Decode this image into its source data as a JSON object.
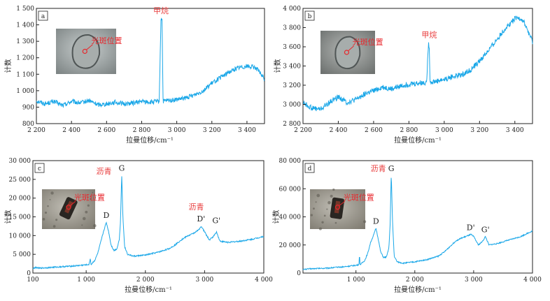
{
  "chart_data": [
    {
      "type": "line",
      "panel_label": "a",
      "xlabel": "拉曼位移/cm⁻¹",
      "ylabel": "计数",
      "xlim": [
        2200,
        3500
      ],
      "ylim": [
        800,
        1500
      ],
      "xticks": [
        2200,
        2400,
        2600,
        2800,
        3000,
        3200,
        3400
      ],
      "xtick_labels": [
        "2 200",
        "2 400",
        "2 600",
        "2 800",
        "3 000",
        "3 200",
        "3 400"
      ],
      "yticks": [
        800,
        900,
        1000,
        1100,
        1200,
        1300,
        1400,
        1500
      ],
      "ytick_labels": [
        "800",
        "900",
        "1 000",
        "1 100",
        "1 200",
        "1 300",
        "1 400",
        "1 500"
      ],
      "series": [
        {
          "color": "#1aa7e8",
          "noise": 14,
          "x": [
            2200,
            2250,
            2300,
            2350,
            2400,
            2450,
            2500,
            2550,
            2600,
            2650,
            2700,
            2750,
            2800,
            2850,
            2900,
            2910,
            2916,
            2922,
            2950,
            3000,
            3050,
            3100,
            3150,
            3200,
            3250,
            3300,
            3350,
            3400,
            3450,
            3480,
            3500
          ],
          "y": [
            940,
            920,
            935,
            910,
            935,
            925,
            940,
            915,
            920,
            930,
            920,
            925,
            935,
            930,
            935,
            1440,
            1440,
            935,
            940,
            945,
            955,
            975,
            1000,
            1045,
            1080,
            1115,
            1140,
            1150,
            1140,
            1100,
            1070
          ]
        }
      ],
      "annotations": [
        {
          "text": "甲烷",
          "x": 2910,
          "y": 1470
        }
      ],
      "inset": {
        "label": "光斑位置"
      }
    },
    {
      "type": "line",
      "panel_label": "b",
      "xlabel": "拉曼位移/cm⁻¹",
      "ylabel": "计数",
      "xlim": [
        2200,
        3500
      ],
      "ylim": [
        2800,
        4000
      ],
      "xticks": [
        2200,
        2400,
        2600,
        2800,
        3000,
        3200,
        3400
      ],
      "xtick_labels": [
        "2 200",
        "2 400",
        "2 600",
        "2 800",
        "3 000",
        "3 200",
        "3 400"
      ],
      "yticks": [
        2800,
        3000,
        3200,
        3400,
        3600,
        3800,
        4000
      ],
      "ytick_labels": [
        "2 800",
        "3 000",
        "3 200",
        "3 400",
        "3 600",
        "3 800",
        "4 000"
      ],
      "series": [
        {
          "color": "#1aa7e8",
          "noise": 28,
          "x": [
            2200,
            2250,
            2300,
            2350,
            2400,
            2450,
            2500,
            2550,
            2600,
            2650,
            2700,
            2750,
            2800,
            2850,
            2900,
            2910,
            2915,
            2920,
            2950,
            3000,
            3050,
            3100,
            3150,
            3200,
            3250,
            3300,
            3350,
            3400,
            3430,
            3450,
            3480,
            3500
          ],
          "y": [
            3020,
            2960,
            2950,
            3020,
            3080,
            3020,
            3050,
            3110,
            3140,
            3180,
            3160,
            3190,
            3210,
            3220,
            3230,
            3620,
            3620,
            3230,
            3240,
            3260,
            3290,
            3310,
            3360,
            3450,
            3560,
            3680,
            3800,
            3890,
            3900,
            3860,
            3740,
            3650
          ]
        }
      ],
      "annotations": [
        {
          "text": "甲烷",
          "x": 2915,
          "y": 3700
        }
      ],
      "inset": {
        "label": "光斑位置"
      }
    },
    {
      "type": "line",
      "panel_label": "c",
      "xlabel": "拉曼位移/cm⁻¹",
      "ylabel": "计数",
      "xlim": [
        100,
        4000
      ],
      "ylim": [
        0,
        30000
      ],
      "xticks": [
        100,
        1000,
        2000,
        3000,
        4000
      ],
      "xtick_labels": [
        "100",
        "1 000",
        "2 000",
        "3 000",
        "4 000"
      ],
      "yticks": [
        0,
        5000,
        10000,
        15000,
        20000,
        25000,
        30000
      ],
      "ytick_labels": [
        "0",
        "5 000",
        "10 000",
        "15 000",
        "20 000",
        "25 000",
        "30 000"
      ],
      "series": [
        {
          "color": "#1aa7e8",
          "noise": 180,
          "x": [
            100,
            150,
            200,
            300,
            500,
            800,
            1000,
            1050,
            1070,
            1080,
            1090,
            1150,
            1200,
            1250,
            1300,
            1340,
            1380,
            1420,
            1470,
            1520,
            1560,
            1580,
            1600,
            1620,
            1650,
            1700,
            1800,
            2000,
            2200,
            2400,
            2500,
            2600,
            2700,
            2800,
            2900,
            2940,
            3000,
            3080,
            3150,
            3200,
            3260,
            3400,
            3600,
            3800,
            4000
          ],
          "y": [
            1200,
            1500,
            1300,
            1400,
            1600,
            1900,
            2200,
            2300,
            4000,
            2300,
            2400,
            3500,
            5500,
            8500,
            11500,
            13500,
            11000,
            7500,
            6000,
            6500,
            9000,
            14000,
            26500,
            15000,
            7000,
            5000,
            4500,
            4800,
            5500,
            6500,
            7500,
            8800,
            9800,
            10500,
            11500,
            12500,
            11000,
            8800,
            9800,
            11000,
            8500,
            8200,
            8500,
            9000,
            9800
          ]
        }
      ],
      "annotations": [
        {
          "text": "沥青",
          "x": 1300,
          "y": 26500,
          "color": "#e83a3a"
        },
        {
          "text": "G",
          "x": 1600,
          "y": 27300,
          "color": "#222222"
        },
        {
          "text": "D",
          "x": 1340,
          "y": 14700,
          "color": "#222222"
        },
        {
          "text": "沥青",
          "x": 2860,
          "y": 17000,
          "color": "#e83a3a"
        },
        {
          "text": "D'",
          "x": 2940,
          "y": 13800,
          "color": "#222222"
        },
        {
          "text": "G'",
          "x": 3200,
          "y": 13300,
          "color": "#222222"
        }
      ],
      "inset": {
        "label": "光斑位置"
      }
    },
    {
      "type": "line",
      "panel_label": "d",
      "xlabel": "拉曼位移/cm⁻¹",
      "ylabel": "计数",
      "xlim": [
        100,
        4000
      ],
      "ylim": [
        0,
        80000
      ],
      "xticks": [
        1000,
        2000,
        3000,
        4000
      ],
      "xtick_labels": [
        "1 000",
        "2 000",
        "3 000",
        "4 000"
      ],
      "yticks": [
        0,
        20000,
        40000,
        60000,
        80000
      ],
      "ytick_labels": [
        "0",
        "20 000",
        "40 000",
        "60 000",
        "80 000"
      ],
      "series": [
        {
          "color": "#1aa7e8",
          "noise": 420,
          "x": [
            100,
            200,
            300,
            500,
            800,
            1000,
            1050,
            1060,
            1070,
            1080,
            1150,
            1200,
            1250,
            1300,
            1340,
            1380,
            1420,
            1470,
            1520,
            1560,
            1580,
            1600,
            1620,
            1650,
            1700,
            1800,
            2000,
            2200,
            2400,
            2500,
            2600,
            2700,
            2800,
            2900,
            2950,
            3000,
            3080,
            3150,
            3200,
            3260,
            3400,
            3600,
            3800,
            4000
          ],
          "y": [
            2500,
            3000,
            3200,
            3500,
            4500,
            5500,
            6000,
            13000,
            6000,
            6200,
            9000,
            14000,
            22000,
            27000,
            32000,
            24000,
            15000,
            11000,
            11500,
            18000,
            34000,
            71000,
            38000,
            12000,
            8000,
            7000,
            8000,
            9500,
            12000,
            15000,
            19000,
            23000,
            25000,
            26500,
            27500,
            26000,
            20000,
            22500,
            26000,
            20000,
            21000,
            23500,
            26000,
            30000
          ]
        }
      ],
      "annotations": [
        {
          "text": "沥青",
          "x": 1380,
          "y": 72500,
          "color": "#e83a3a"
        },
        {
          "text": "G",
          "x": 1600,
          "y": 72500,
          "color": "#222222"
        },
        {
          "text": "D",
          "x": 1340,
          "y": 35000,
          "color": "#222222"
        },
        {
          "text": "D'",
          "x": 2950,
          "y": 30500,
          "color": "#222222"
        },
        {
          "text": "G'",
          "x": 3200,
          "y": 29000,
          "color": "#222222"
        }
      ],
      "inset": {
        "label": "光斑位置"
      }
    }
  ]
}
